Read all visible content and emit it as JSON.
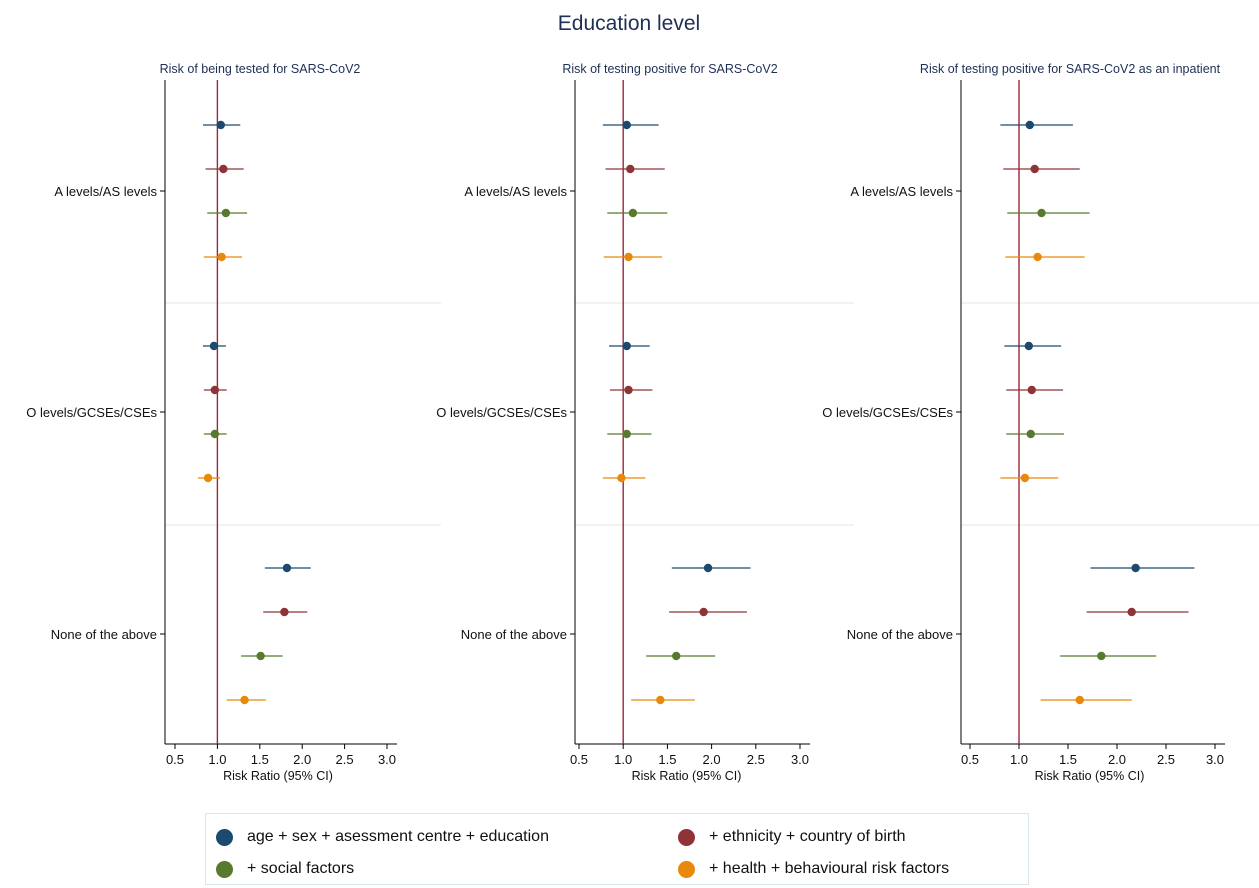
{
  "title": "Education level",
  "colors": {
    "ref_line": "#a0243a",
    "separator": "#e6e6e6",
    "axis": "#000000"
  },
  "legend": {
    "items": [
      {
        "label": "age + sex + asessment centre + education",
        "color": "#1b4a6e"
      },
      {
        "label": "+ ethnicity + country of birth",
        "color": "#8e3439"
      },
      {
        "label": "+ social factors",
        "color": "#587a2e"
      },
      {
        "label": "+ health + behavioural risk factors",
        "color": "#e8890c"
      }
    ]
  },
  "chart_data": [
    {
      "type": "forest",
      "title": "Risk of being tested for SARS-CoV2",
      "xlabel": "Risk Ratio (95% CI)",
      "xlim": [
        0.5,
        3.0
      ],
      "xticks": [
        "0.5",
        "1.0",
        "1.5",
        "2.0",
        "2.5",
        "3.0"
      ],
      "reference_line": 1.0,
      "categories": [
        "A levels/AS levels",
        "O levels/GCSEs/CSEs",
        "None of the above"
      ],
      "series": [
        {
          "name": "age + sex + asessment centre + education",
          "values": [
            1.04,
            0.96,
            1.82
          ],
          "lower": [
            0.83,
            0.83,
            1.56
          ],
          "upper": [
            1.27,
            1.1,
            2.1
          ]
        },
        {
          "name": "+ ethnicity + country of birth",
          "values": [
            1.07,
            0.97,
            1.79
          ],
          "lower": [
            0.86,
            0.84,
            1.54
          ],
          "upper": [
            1.31,
            1.11,
            2.06
          ]
        },
        {
          "name": "+ social factors",
          "values": [
            1.1,
            0.97,
            1.51
          ],
          "lower": [
            0.88,
            0.84,
            1.28
          ],
          "upper": [
            1.35,
            1.11,
            1.77
          ]
        },
        {
          "name": "+ health + behavioural risk factors",
          "values": [
            1.05,
            0.89,
            1.32
          ],
          "lower": [
            0.84,
            0.77,
            1.11
          ],
          "upper": [
            1.29,
            1.03,
            1.57
          ]
        }
      ]
    },
    {
      "type": "forest",
      "title": "Risk of testing positive for SARS-CoV2",
      "xlabel": "Risk Ratio (95% CI)",
      "xlim": [
        0.5,
        3.0
      ],
      "xticks": [
        "0.5",
        "1.0",
        "1.5",
        "2.0",
        "2.5",
        "3.0"
      ],
      "reference_line": 1.0,
      "categories": [
        "A levels/AS levels",
        "O levels/GCSEs/CSEs",
        "None of the above"
      ],
      "series": [
        {
          "name": "age + sex + asessment centre + education",
          "values": [
            1.04,
            1.04,
            1.96
          ],
          "lower": [
            0.77,
            0.84,
            1.55
          ],
          "upper": [
            1.4,
            1.3,
            2.44
          ]
        },
        {
          "name": "+ ethnicity + country of birth",
          "values": [
            1.08,
            1.06,
            1.91
          ],
          "lower": [
            0.8,
            0.85,
            1.52
          ],
          "upper": [
            1.47,
            1.33,
            2.4
          ]
        },
        {
          "name": "+ social factors",
          "values": [
            1.11,
            1.04,
            1.6
          ],
          "lower": [
            0.82,
            0.82,
            1.26
          ],
          "upper": [
            1.5,
            1.32,
            2.04
          ]
        },
        {
          "name": "+ health + behavioural risk factors",
          "values": [
            1.06,
            0.98,
            1.42
          ],
          "lower": [
            0.78,
            0.77,
            1.09
          ],
          "upper": [
            1.44,
            1.25,
            1.81
          ]
        }
      ]
    },
    {
      "type": "forest",
      "title": "Risk of testing positive for SARS-CoV2 as an inpatient",
      "xlabel": "Risk Ratio (95% CI)",
      "xlim": [
        0.5,
        3.0
      ],
      "xticks": [
        "0.5",
        "1.0",
        "1.5",
        "2.0",
        "2.5",
        "3.0"
      ],
      "reference_line": 1.0,
      "categories": [
        "A levels/AS levels",
        "O levels/GCSEs/CSEs",
        "None of the above"
      ],
      "series": [
        {
          "name": "age + sex + asessment centre + education",
          "values": [
            1.11,
            1.1,
            2.19
          ],
          "lower": [
            0.81,
            0.85,
            1.73
          ],
          "upper": [
            1.55,
            1.43,
            2.79
          ]
        },
        {
          "name": "+ ethnicity + country of birth",
          "values": [
            1.16,
            1.13,
            2.15
          ],
          "lower": [
            0.84,
            0.87,
            1.69
          ],
          "upper": [
            1.62,
            1.45,
            2.73
          ]
        },
        {
          "name": "+ social factors",
          "values": [
            1.23,
            1.12,
            1.84
          ],
          "lower": [
            0.88,
            0.87,
            1.42
          ],
          "upper": [
            1.72,
            1.46,
            2.4
          ]
        },
        {
          "name": "+ health + behavioural risk factors",
          "values": [
            1.19,
            1.06,
            1.62
          ],
          "lower": [
            0.86,
            0.81,
            1.22
          ],
          "upper": [
            1.67,
            1.4,
            2.15
          ]
        }
      ]
    }
  ]
}
